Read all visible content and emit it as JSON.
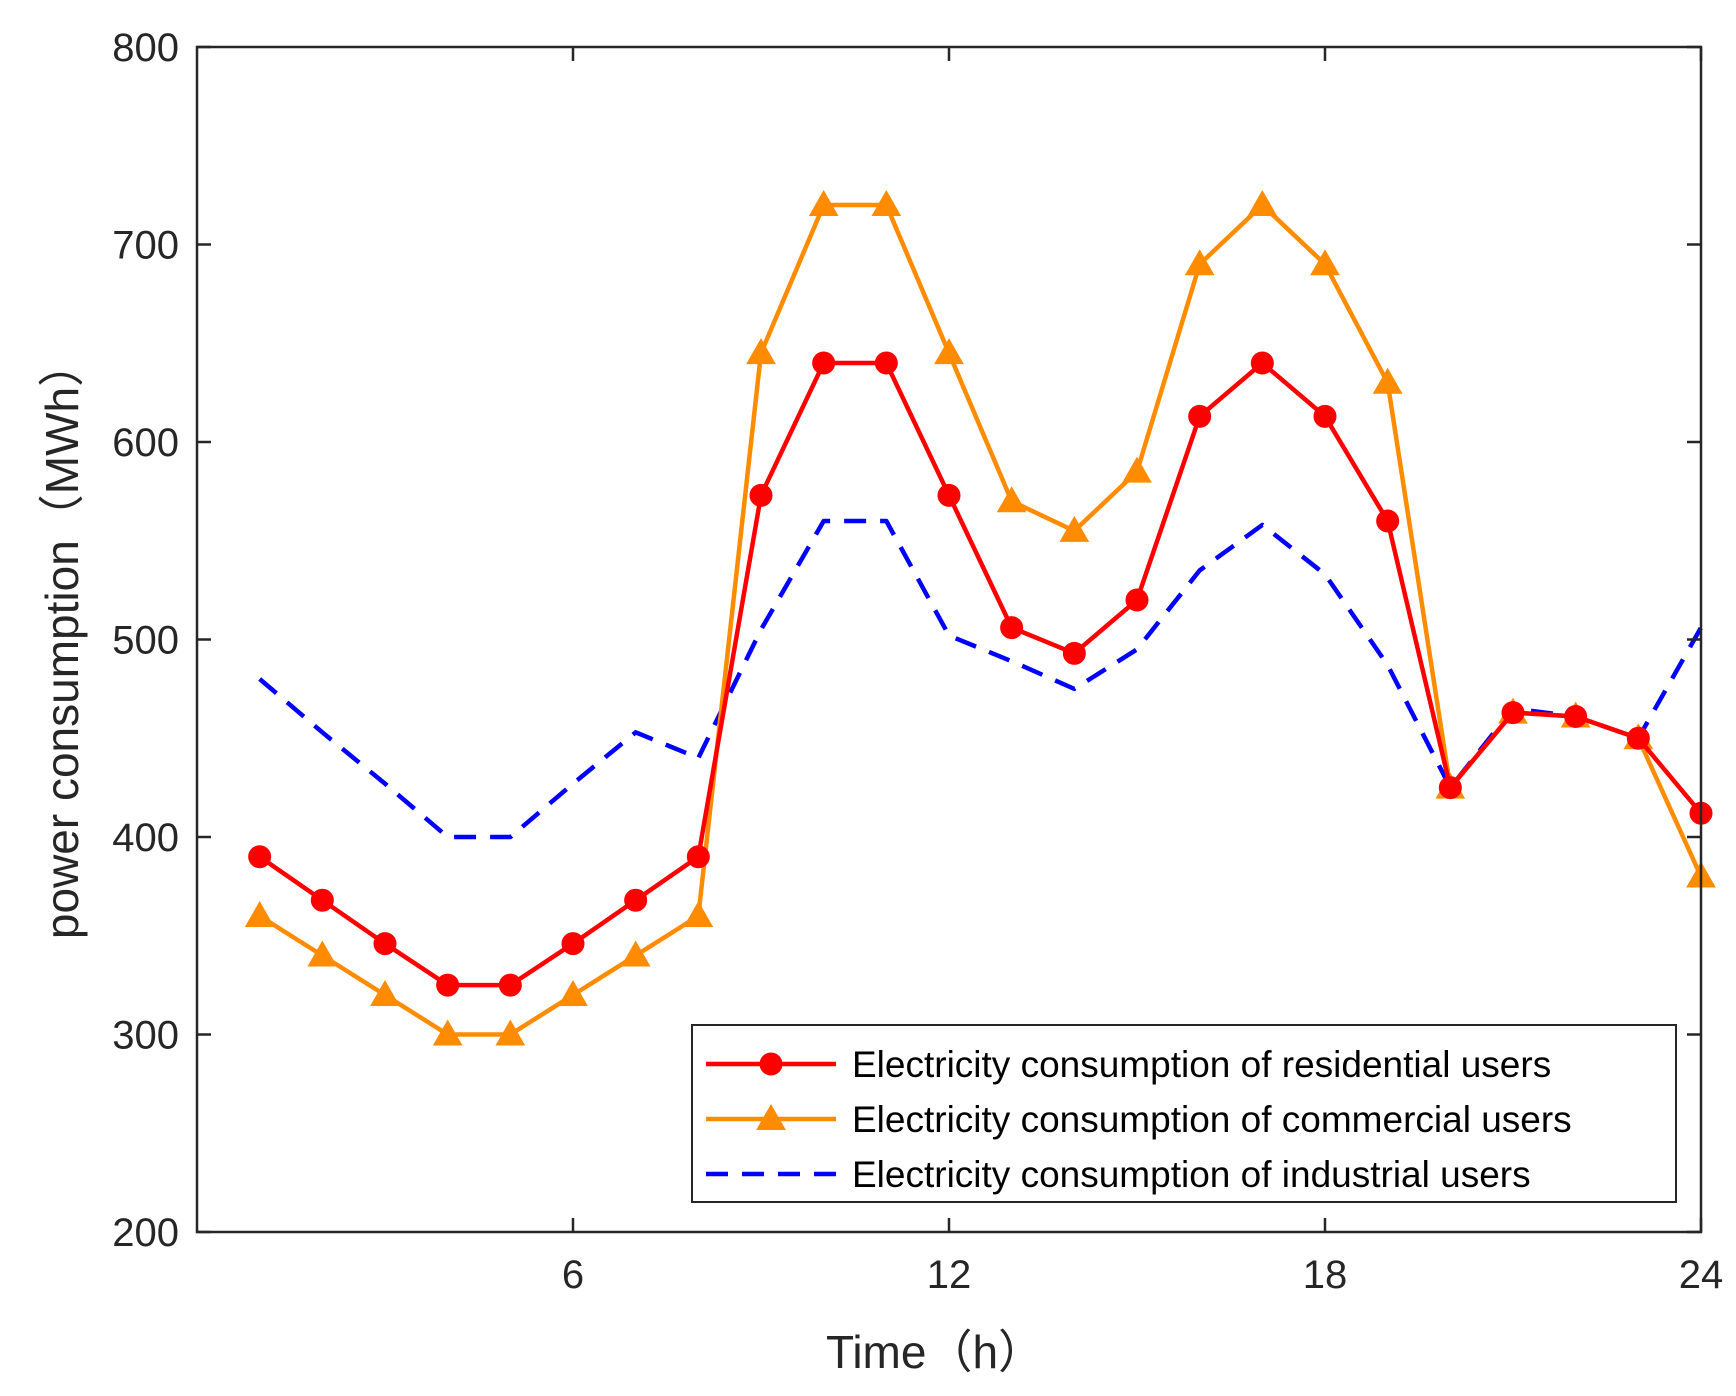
{
  "chart_data": {
    "type": "line",
    "title": "",
    "xlabel": "Time（h）",
    "ylabel": "power consumption（MWh）",
    "xlim": [
      0,
      24
    ],
    "ylim": [
      200,
      800
    ],
    "x_ticks": [
      6,
      12,
      18,
      24
    ],
    "y_ticks": [
      200,
      300,
      400,
      500,
      600,
      700,
      800
    ],
    "grid": false,
    "legend_position": "bottom-right",
    "x": [
      1,
      2,
      3,
      4,
      5,
      6,
      7,
      8,
      9,
      10,
      11,
      12,
      13,
      14,
      15,
      16,
      17,
      18,
      19,
      20,
      21,
      22,
      23,
      24
    ],
    "series": [
      {
        "name": "Electricity consumption of residential users",
        "color": "#ff0000",
        "line_style": "solid",
        "marker": "circle",
        "values": [
          390,
          368,
          346,
          325,
          325,
          346,
          368,
          390,
          573,
          640,
          640,
          573,
          506,
          493,
          520,
          613,
          640,
          613,
          560,
          425,
          463,
          461,
          450,
          412
        ]
      },
      {
        "name": "Electricity consumption of commercial users",
        "color": "#ff8c00",
        "line_style": "solid",
        "marker": "triangle",
        "values": [
          360,
          340,
          320,
          300,
          300,
          320,
          340,
          360,
          645,
          720,
          720,
          645,
          570,
          555,
          585,
          690,
          720,
          690,
          630,
          425,
          463,
          461,
          450,
          380
        ]
      },
      {
        "name": "Electricity consumption of industrial users",
        "color": "#0000ff",
        "line_style": "dashed",
        "marker": "none",
        "values": [
          480,
          453,
          427,
          400,
          400,
          427,
          453,
          440,
          505,
          560,
          560,
          502,
          489,
          475,
          495,
          535,
          558,
          533,
          487,
          425,
          465,
          461,
          450,
          506
        ]
      }
    ]
  }
}
